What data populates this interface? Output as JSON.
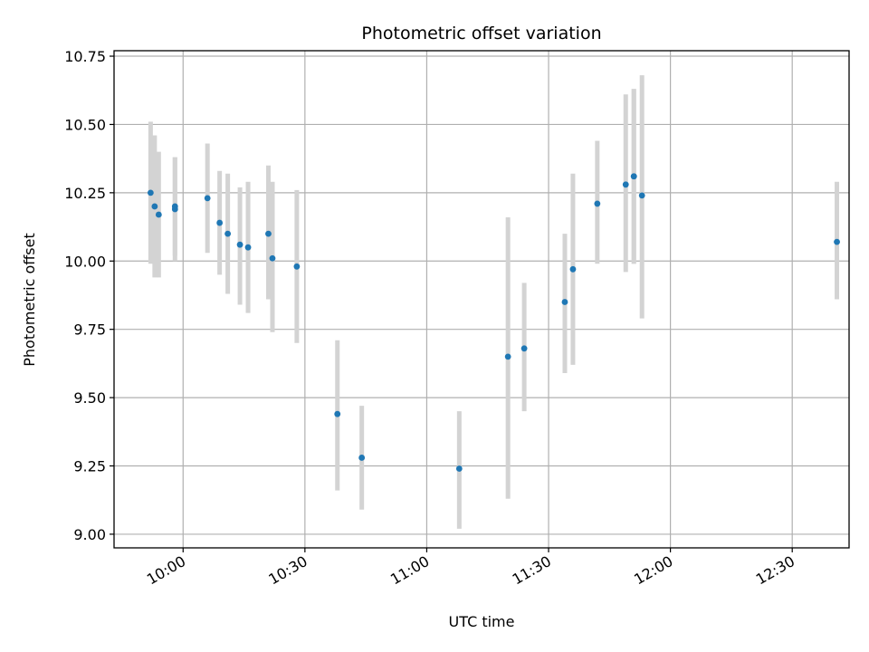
{
  "chart_data": {
    "type": "scatter",
    "title": "Photometric offset variation",
    "xlabel": "UTC time",
    "ylabel": "Photometric offset",
    "xlim": [
      "09:43",
      "12:44"
    ],
    "ylim": [
      8.95,
      10.77
    ],
    "grid": true,
    "x_ticks": [
      "10:00",
      "10:30",
      "11:00",
      "11:30",
      "12:00",
      "12:30"
    ],
    "y_ticks": [
      "9.00",
      "9.25",
      "9.50",
      "9.75",
      "10.00",
      "10.25",
      "10.50",
      "10.75"
    ],
    "colors": {
      "point": "#1f77b4",
      "errorbar": "#d3d3d3",
      "grid": "#b0b0b0"
    },
    "points": [
      {
        "x": "09:52",
        "y": 10.25,
        "yerr_low": 9.99,
        "yerr_high": 10.51
      },
      {
        "x": "09:53",
        "y": 10.2,
        "yerr_low": 9.94,
        "yerr_high": 10.46
      },
      {
        "x": "09:54",
        "y": 10.17,
        "yerr_low": 9.94,
        "yerr_high": 10.4
      },
      {
        "x": "09:58",
        "y": 10.19,
        "yerr_low": 10.0,
        "yerr_high": 10.38
      },
      {
        "x": "09:58",
        "y": 10.2,
        "yerr_low": 10.02,
        "yerr_high": 10.38
      },
      {
        "x": "10:06",
        "y": 10.23,
        "yerr_low": 10.03,
        "yerr_high": 10.43
      },
      {
        "x": "10:09",
        "y": 10.14,
        "yerr_low": 9.95,
        "yerr_high": 10.33
      },
      {
        "x": "10:11",
        "y": 10.1,
        "yerr_low": 9.88,
        "yerr_high": 10.32
      },
      {
        "x": "10:14",
        "y": 10.06,
        "yerr_low": 9.84,
        "yerr_high": 10.27
      },
      {
        "x": "10:16",
        "y": 10.05,
        "yerr_low": 9.81,
        "yerr_high": 10.29
      },
      {
        "x": "10:21",
        "y": 10.1,
        "yerr_low": 9.86,
        "yerr_high": 10.35
      },
      {
        "x": "10:22",
        "y": 10.01,
        "yerr_low": 9.74,
        "yerr_high": 10.29
      },
      {
        "x": "10:28",
        "y": 9.98,
        "yerr_low": 9.7,
        "yerr_high": 10.26
      },
      {
        "x": "10:38",
        "y": 9.44,
        "yerr_low": 9.16,
        "yerr_high": 9.71
      },
      {
        "x": "10:44",
        "y": 9.28,
        "yerr_low": 9.09,
        "yerr_high": 9.47
      },
      {
        "x": "11:08",
        "y": 9.24,
        "yerr_low": 9.02,
        "yerr_high": 9.45
      },
      {
        "x": "11:20",
        "y": 9.65,
        "yerr_low": 9.13,
        "yerr_high": 10.16
      },
      {
        "x": "11:24",
        "y": 9.68,
        "yerr_low": 9.45,
        "yerr_high": 9.92
      },
      {
        "x": "11:34",
        "y": 9.85,
        "yerr_low": 9.59,
        "yerr_high": 10.1
      },
      {
        "x": "11:36",
        "y": 9.97,
        "yerr_low": 9.62,
        "yerr_high": 10.32
      },
      {
        "x": "11:42",
        "y": 10.21,
        "yerr_low": 9.99,
        "yerr_high": 10.44
      },
      {
        "x": "11:49",
        "y": 10.28,
        "yerr_low": 9.96,
        "yerr_high": 10.61
      },
      {
        "x": "11:51",
        "y": 10.31,
        "yerr_low": 9.99,
        "yerr_high": 10.63
      },
      {
        "x": "11:51",
        "y": 10.31,
        "yerr_low": 9.99,
        "yerr_high": 10.63
      },
      {
        "x": "11:53",
        "y": 10.24,
        "yerr_low": 9.79,
        "yerr_high": 10.68
      },
      {
        "x": "12:41",
        "y": 10.07,
        "yerr_low": 9.86,
        "yerr_high": 10.29
      }
    ]
  }
}
